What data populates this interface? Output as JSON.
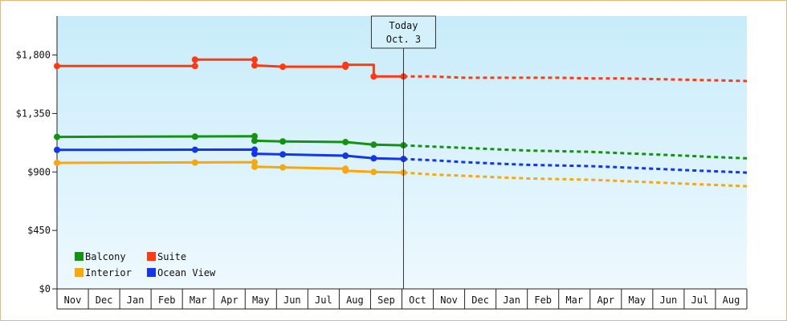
{
  "chart_data": {
    "type": "line",
    "title": "",
    "xlabel": "",
    "ylabel": "",
    "ylim": [
      0,
      2100
    ],
    "y_ticks": [
      0,
      450,
      900,
      1350,
      1800
    ],
    "y_tick_labels": [
      "$0",
      "$450",
      "$900",
      "$1,350",
      "$1,800"
    ],
    "x_range": [
      0,
      22
    ],
    "month_labels": [
      "Nov",
      "Dec",
      "Jan",
      "Feb",
      "Mar",
      "Apr",
      "May",
      "Jun",
      "Jul",
      "Aug",
      "Sep",
      "Oct",
      "Nov",
      "Dec",
      "Jan",
      "Feb",
      "Mar",
      "Apr",
      "May",
      "Jun",
      "Jul",
      "Aug"
    ],
    "today": {
      "x": 11.05,
      "label_line1": "Today",
      "label_line2": "Oct. 3"
    },
    "grid": false,
    "legend_position": "bottom-left",
    "series": [
      {
        "name": "Suite",
        "color": "#ff3a12",
        "history": [
          [
            0,
            1715
          ],
          [
            4.4,
            1715
          ],
          [
            4.4,
            1765
          ],
          [
            6.3,
            1765
          ],
          [
            6.3,
            1720
          ],
          [
            7.2,
            1710
          ],
          [
            9.2,
            1710
          ],
          [
            9.2,
            1725
          ],
          [
            10.1,
            1725
          ],
          [
            10.1,
            1635
          ],
          [
            11.05,
            1635
          ]
        ],
        "markers": [
          [
            0,
            1715
          ],
          [
            4.4,
            1715
          ],
          [
            4.4,
            1765
          ],
          [
            6.3,
            1765
          ],
          [
            6.3,
            1720
          ],
          [
            7.2,
            1710
          ],
          [
            9.2,
            1710
          ],
          [
            9.2,
            1725
          ],
          [
            10.1,
            1635
          ],
          [
            11.05,
            1635
          ]
        ],
        "forecast": [
          [
            11.05,
            1635
          ],
          [
            12,
            1635
          ],
          [
            13,
            1625
          ],
          [
            14,
            1625
          ],
          [
            15,
            1625
          ],
          [
            16,
            1625
          ],
          [
            17,
            1620
          ],
          [
            18,
            1620
          ],
          [
            19,
            1615
          ],
          [
            20,
            1610
          ],
          [
            21,
            1605
          ],
          [
            22,
            1600
          ]
        ]
      },
      {
        "name": "Balcony",
        "color": "#129412",
        "history": [
          [
            0,
            1170
          ],
          [
            6.3,
            1175
          ],
          [
            6.3,
            1140
          ],
          [
            7.2,
            1135
          ],
          [
            9.2,
            1130
          ],
          [
            10.1,
            1110
          ],
          [
            11.05,
            1105
          ]
        ],
        "markers": [
          [
            0,
            1170
          ],
          [
            4.4,
            1172
          ],
          [
            6.3,
            1175
          ],
          [
            6.3,
            1140
          ],
          [
            7.2,
            1135
          ],
          [
            9.2,
            1130
          ],
          [
            10.1,
            1110
          ],
          [
            11.05,
            1105
          ]
        ],
        "forecast": [
          [
            11.05,
            1105
          ],
          [
            12,
            1095
          ],
          [
            13,
            1085
          ],
          [
            14,
            1075
          ],
          [
            15,
            1065
          ],
          [
            16,
            1060
          ],
          [
            17,
            1055
          ],
          [
            18,
            1045
          ],
          [
            19,
            1035
          ],
          [
            20,
            1025
          ],
          [
            21,
            1015
          ],
          [
            22,
            1005
          ]
        ]
      },
      {
        "name": "Ocean View",
        "color": "#1236ee",
        "history": [
          [
            0,
            1070
          ],
          [
            6.3,
            1072
          ],
          [
            6.3,
            1040
          ],
          [
            7.2,
            1035
          ],
          [
            9.2,
            1025
          ],
          [
            10.1,
            1005
          ],
          [
            11.05,
            1000
          ]
        ],
        "markers": [
          [
            0,
            1070
          ],
          [
            4.4,
            1071
          ],
          [
            6.3,
            1072
          ],
          [
            6.3,
            1040
          ],
          [
            7.2,
            1035
          ],
          [
            9.2,
            1025
          ],
          [
            10.1,
            1005
          ],
          [
            11.05,
            1000
          ]
        ],
        "forecast": [
          [
            11.05,
            1000
          ],
          [
            12,
            990
          ],
          [
            13,
            975
          ],
          [
            14,
            965
          ],
          [
            15,
            955
          ],
          [
            16,
            950
          ],
          [
            17,
            945
          ],
          [
            18,
            935
          ],
          [
            19,
            925
          ],
          [
            20,
            915
          ],
          [
            21,
            905
          ],
          [
            22,
            895
          ]
        ]
      },
      {
        "name": "Interior",
        "color": "#f9a70f",
        "history": [
          [
            0,
            970
          ],
          [
            6.3,
            975
          ],
          [
            6.3,
            940
          ],
          [
            7.2,
            935
          ],
          [
            9.2,
            925
          ],
          [
            9.2,
            910
          ],
          [
            10.1,
            900
          ],
          [
            11.05,
            895
          ]
        ],
        "markers": [
          [
            0,
            970
          ],
          [
            4.4,
            972
          ],
          [
            6.3,
            975
          ],
          [
            6.3,
            940
          ],
          [
            7.2,
            935
          ],
          [
            9.2,
            925
          ],
          [
            9.2,
            910
          ],
          [
            10.1,
            900
          ],
          [
            11.05,
            895
          ]
        ],
        "forecast": [
          [
            11.05,
            895
          ],
          [
            12,
            880
          ],
          [
            13,
            870
          ],
          [
            14,
            860
          ],
          [
            15,
            850
          ],
          [
            16,
            845
          ],
          [
            17,
            840
          ],
          [
            18,
            830
          ],
          [
            19,
            820
          ],
          [
            20,
            810
          ],
          [
            21,
            800
          ],
          [
            22,
            790
          ]
        ]
      }
    ],
    "legend": [
      {
        "name": "Balcony",
        "color": "#129412"
      },
      {
        "name": "Suite",
        "color": "#ff3a12"
      },
      {
        "name": "Interior",
        "color": "#f9a70f"
      },
      {
        "name": "Ocean View",
        "color": "#1236ee"
      }
    ]
  }
}
